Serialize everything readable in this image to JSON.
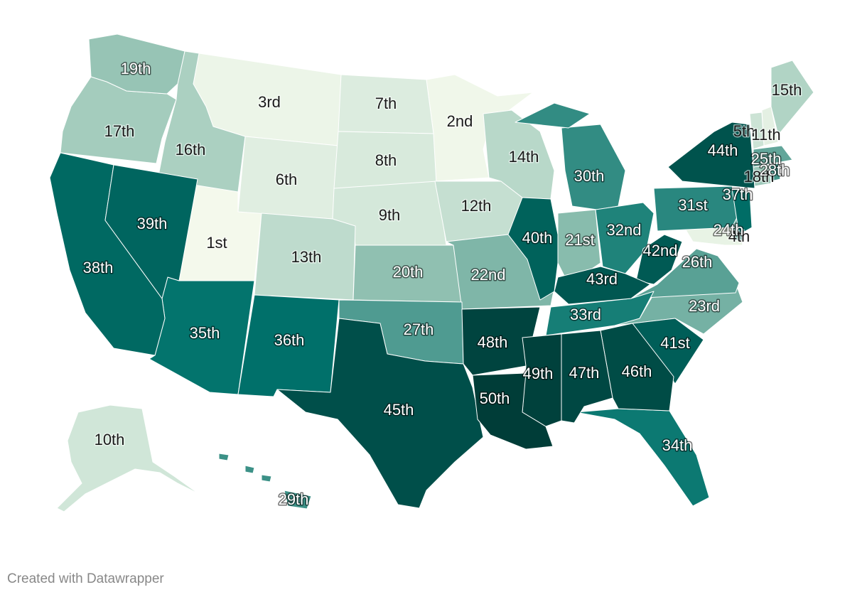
{
  "credit": "Created with Datawrapper",
  "palette": {
    "background": "#ffffff",
    "border": "#ffffff",
    "rank_1": "#f4f9ec",
    "rank_50": "#003d38"
  },
  "states": [
    {
      "code": "UT",
      "rank": 1,
      "label": "1st"
    },
    {
      "code": "MN",
      "rank": 2,
      "label": "2nd"
    },
    {
      "code": "MT",
      "rank": 3,
      "label": "3rd"
    },
    {
      "code": "MD",
      "rank": 4,
      "label": "4th"
    },
    {
      "code": "NH",
      "rank": 5,
      "label": "5th"
    },
    {
      "code": "WY",
      "rank": 6,
      "label": "6th"
    },
    {
      "code": "ND",
      "rank": 7,
      "label": "7th"
    },
    {
      "code": "SD",
      "rank": 8,
      "label": "8th"
    },
    {
      "code": "NE",
      "rank": 9,
      "label": "9th"
    },
    {
      "code": "AK",
      "rank": 10,
      "label": "10th"
    },
    {
      "code": "VT",
      "rank": 11,
      "label": "11th"
    },
    {
      "code": "IA",
      "rank": 12,
      "label": "12th"
    },
    {
      "code": "CO",
      "rank": 13,
      "label": "13th"
    },
    {
      "code": "WI",
      "rank": 14,
      "label": "14th"
    },
    {
      "code": "ME",
      "rank": 15,
      "label": "15th"
    },
    {
      "code": "ID",
      "rank": 16,
      "label": "16th"
    },
    {
      "code": "OR",
      "rank": 17,
      "label": "17th"
    },
    {
      "code": "CT",
      "rank": 18,
      "label": "18th"
    },
    {
      "code": "WA",
      "rank": 19,
      "label": "19th"
    },
    {
      "code": "KS",
      "rank": 20,
      "label": "20th"
    },
    {
      "code": "IN",
      "rank": 21,
      "label": "21st"
    },
    {
      "code": "MO",
      "rank": 22,
      "label": "22nd"
    },
    {
      "code": "NC",
      "rank": 23,
      "label": "23rd"
    },
    {
      "code": "DE",
      "rank": 24,
      "label": "24th"
    },
    {
      "code": "MA",
      "rank": 25,
      "label": "25th"
    },
    {
      "code": "VA",
      "rank": 26,
      "label": "26th"
    },
    {
      "code": "OK",
      "rank": 27,
      "label": "27th"
    },
    {
      "code": "RI",
      "rank": 28,
      "label": "28th"
    },
    {
      "code": "HI",
      "rank": 29,
      "label": "29th"
    },
    {
      "code": "MI",
      "rank": 30,
      "label": "30th"
    },
    {
      "code": "PA",
      "rank": 31,
      "label": "31st"
    },
    {
      "code": "OH",
      "rank": 32,
      "label": "32nd"
    },
    {
      "code": "TN",
      "rank": 33,
      "label": "33rd"
    },
    {
      "code": "FL",
      "rank": 34,
      "label": "34th"
    },
    {
      "code": "AZ",
      "rank": 35,
      "label": "35th"
    },
    {
      "code": "NM",
      "rank": 36,
      "label": "36th"
    },
    {
      "code": "NJ",
      "rank": 37,
      "label": "37th"
    },
    {
      "code": "CA",
      "rank": 38,
      "label": "38th"
    },
    {
      "code": "NV",
      "rank": 39,
      "label": "39th"
    },
    {
      "code": "IL",
      "rank": 40,
      "label": "40th"
    },
    {
      "code": "SC",
      "rank": 41,
      "label": "41st"
    },
    {
      "code": "WV",
      "rank": 42,
      "label": "42nd"
    },
    {
      "code": "KY",
      "rank": 43,
      "label": "43rd"
    },
    {
      "code": "NY",
      "rank": 44,
      "label": "44th"
    },
    {
      "code": "TX",
      "rank": 45,
      "label": "45th"
    },
    {
      "code": "GA",
      "rank": 46,
      "label": "46th"
    },
    {
      "code": "AL",
      "rank": 47,
      "label": "47th"
    },
    {
      "code": "AR",
      "rank": 48,
      "label": "48th"
    },
    {
      "code": "MS",
      "rank": 49,
      "label": "49th"
    },
    {
      "code": "LA",
      "rank": 50,
      "label": "50th"
    }
  ]
}
